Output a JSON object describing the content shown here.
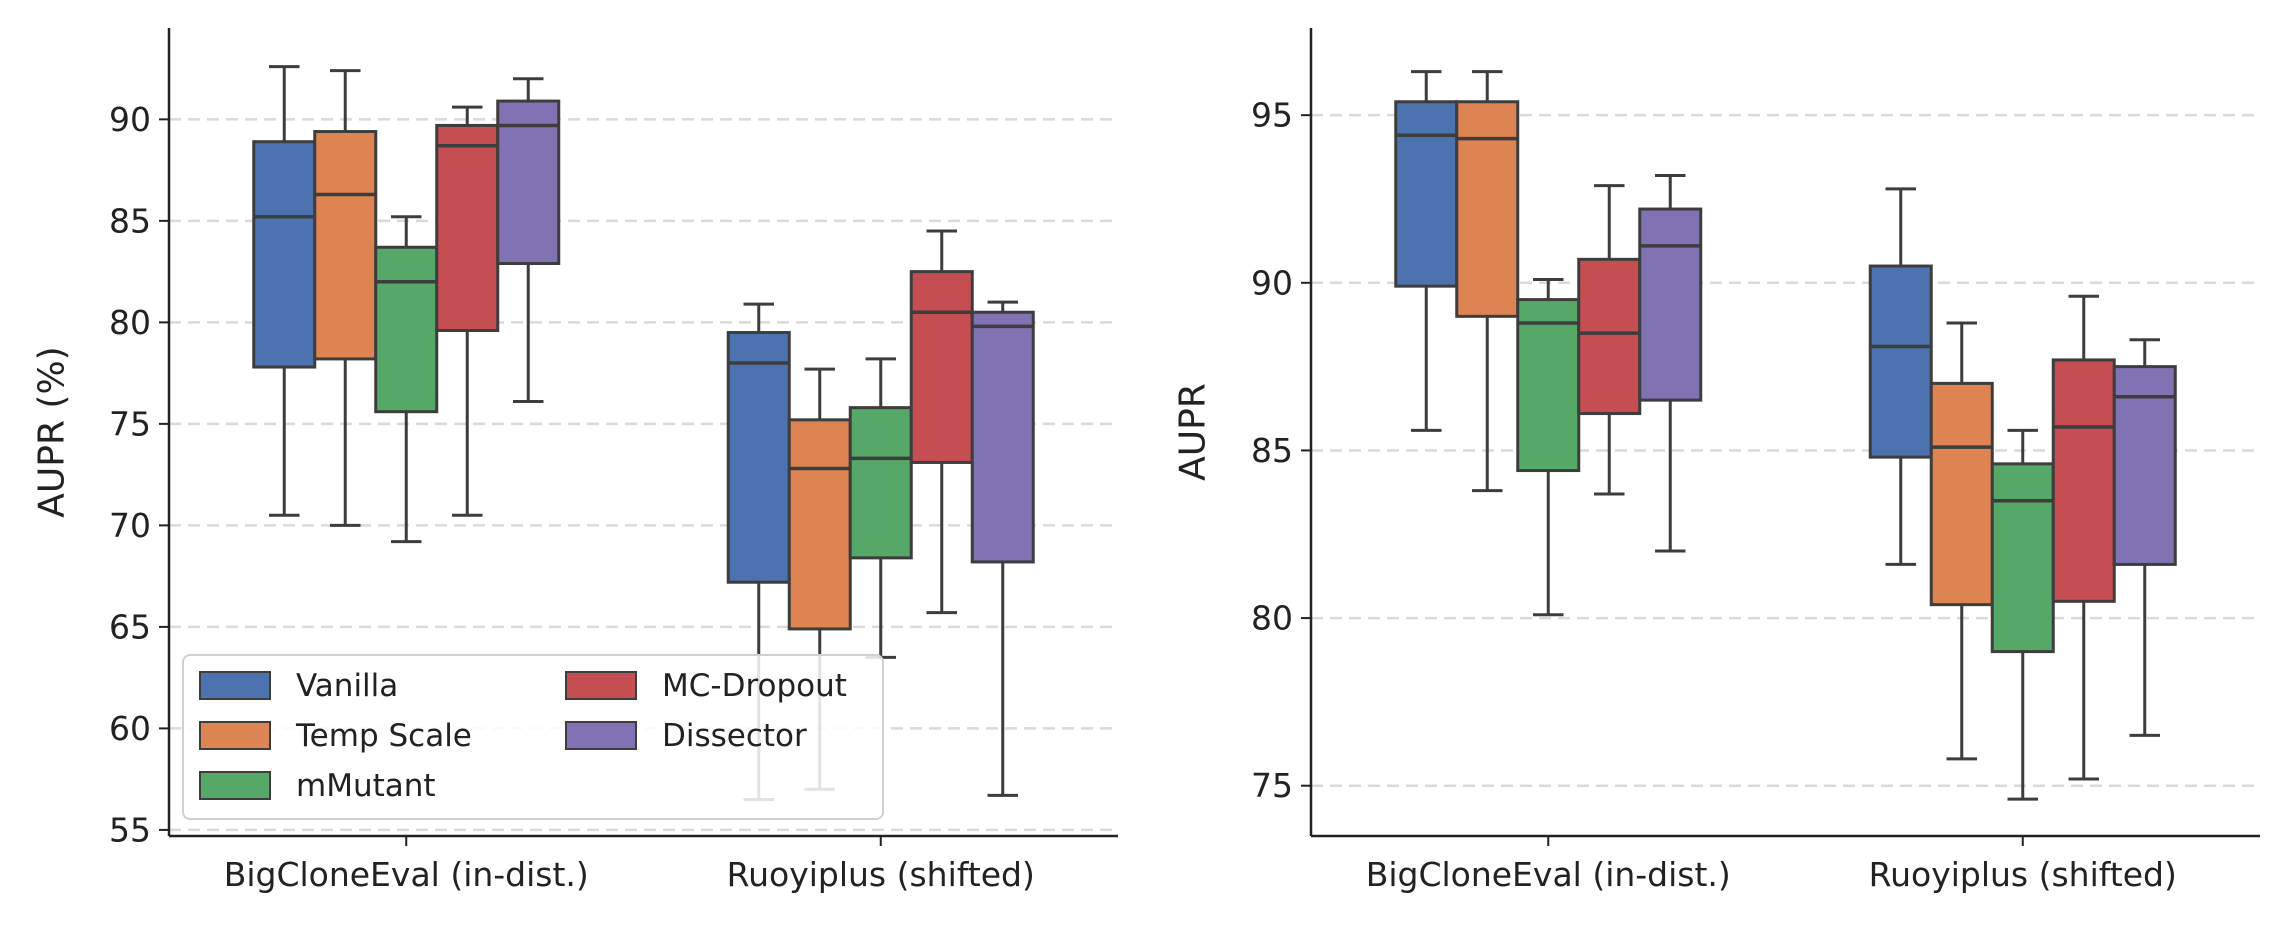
{
  "chart_data": [
    {
      "type": "boxplot",
      "ylabel": "AUPR (%)",
      "xlabel": "",
      "ylim": [
        54.7,
        94.5
      ],
      "yticks": [
        55,
        60,
        65,
        70,
        75,
        80,
        85,
        90
      ],
      "grid": "horizontal dashed",
      "legend": "lower-left",
      "categories": [
        "BigCloneEval (in-dist.)",
        "Ruoyiplus (shifted)"
      ],
      "series": [
        {
          "name": "Vanilla",
          "color": "#4c72b0",
          "boxes": [
            {
              "whislo": 70.5,
              "q1": 77.8,
              "med": 85.2,
              "q3": 88.9,
              "whishi": 92.6
            },
            {
              "whislo": 56.5,
              "q1": 67.2,
              "med": 78.0,
              "q3": 79.5,
              "whishi": 80.9
            }
          ]
        },
        {
          "name": "Temp Scale",
          "color": "#dd8452",
          "boxes": [
            {
              "whislo": 70.0,
              "q1": 78.2,
              "med": 86.3,
              "q3": 89.4,
              "whishi": 92.4
            },
            {
              "whislo": 57.0,
              "q1": 64.9,
              "med": 72.8,
              "q3": 75.2,
              "whishi": 77.7
            }
          ]
        },
        {
          "name": "mMutant",
          "color": "#55a868",
          "boxes": [
            {
              "whislo": 69.2,
              "q1": 75.6,
              "med": 82.0,
              "q3": 83.7,
              "whishi": 85.2
            },
            {
              "whislo": 63.5,
              "q1": 68.4,
              "med": 73.3,
              "q3": 75.8,
              "whishi": 78.2
            }
          ]
        },
        {
          "name": "MC-Dropout",
          "color": "#c44e52",
          "boxes": [
            {
              "whislo": 70.5,
              "q1": 79.6,
              "med": 88.7,
              "q3": 89.7,
              "whishi": 90.6
            },
            {
              "whislo": 65.7,
              "q1": 73.1,
              "med": 80.5,
              "q3": 82.5,
              "whishi": 84.5
            }
          ]
        },
        {
          "name": "Dissector",
          "color": "#8172b3",
          "boxes": [
            {
              "whislo": 76.1,
              "q1": 82.9,
              "med": 89.7,
              "q3": 90.9,
              "whishi": 92.0
            },
            {
              "whislo": 56.7,
              "q1": 68.2,
              "med": 79.8,
              "q3": 80.5,
              "whishi": 81.0
            }
          ]
        }
      ]
    },
    {
      "type": "boxplot",
      "ylabel": "AUPR",
      "xlabel": "",
      "ylim": [
        73.5,
        97.6
      ],
      "yticks": [
        75,
        80,
        85,
        90,
        95
      ],
      "grid": "horizontal dashed",
      "legend": "none",
      "categories": [
        "BigCloneEval (in-dist.)",
        "Ruoyiplus (shifted)"
      ],
      "series": [
        {
          "name": "Vanilla",
          "color": "#4c72b0",
          "boxes": [
            {
              "whislo": 85.6,
              "q1": 89.9,
              "med": 94.4,
              "q3": 95.4,
              "whishi": 96.3
            },
            {
              "whislo": 81.6,
              "q1": 84.8,
              "med": 88.1,
              "q3": 90.5,
              "whishi": 92.8
            }
          ]
        },
        {
          "name": "Temp Scale",
          "color": "#dd8452",
          "boxes": [
            {
              "whislo": 83.8,
              "q1": 89.0,
              "med": 94.3,
              "q3": 95.4,
              "whishi": 96.3
            },
            {
              "whislo": 75.8,
              "q1": 80.4,
              "med": 85.1,
              "q3": 87.0,
              "whishi": 88.8
            }
          ]
        },
        {
          "name": "mMutant",
          "color": "#55a868",
          "boxes": [
            {
              "whislo": 80.1,
              "q1": 84.4,
              "med": 88.8,
              "q3": 89.5,
              "whishi": 90.1
            },
            {
              "whislo": 74.6,
              "q1": 79.0,
              "med": 83.5,
              "q3": 84.6,
              "whishi": 85.6
            }
          ]
        },
        {
          "name": "MC-Dropout",
          "color": "#c44e52",
          "boxes": [
            {
              "whislo": 83.7,
              "q1": 86.1,
              "med": 88.5,
              "q3": 90.7,
              "whishi": 92.9
            },
            {
              "whislo": 75.2,
              "q1": 80.5,
              "med": 85.7,
              "q3": 87.7,
              "whishi": 89.6
            }
          ]
        },
        {
          "name": "Dissector",
          "color": "#8172b3",
          "boxes": [
            {
              "whislo": 82.0,
              "q1": 86.5,
              "med": 91.1,
              "q3": 92.2,
              "whishi": 93.2
            },
            {
              "whislo": 76.5,
              "q1": 81.6,
              "med": 86.6,
              "q3": 87.5,
              "whishi": 88.3
            }
          ]
        }
      ]
    }
  ]
}
